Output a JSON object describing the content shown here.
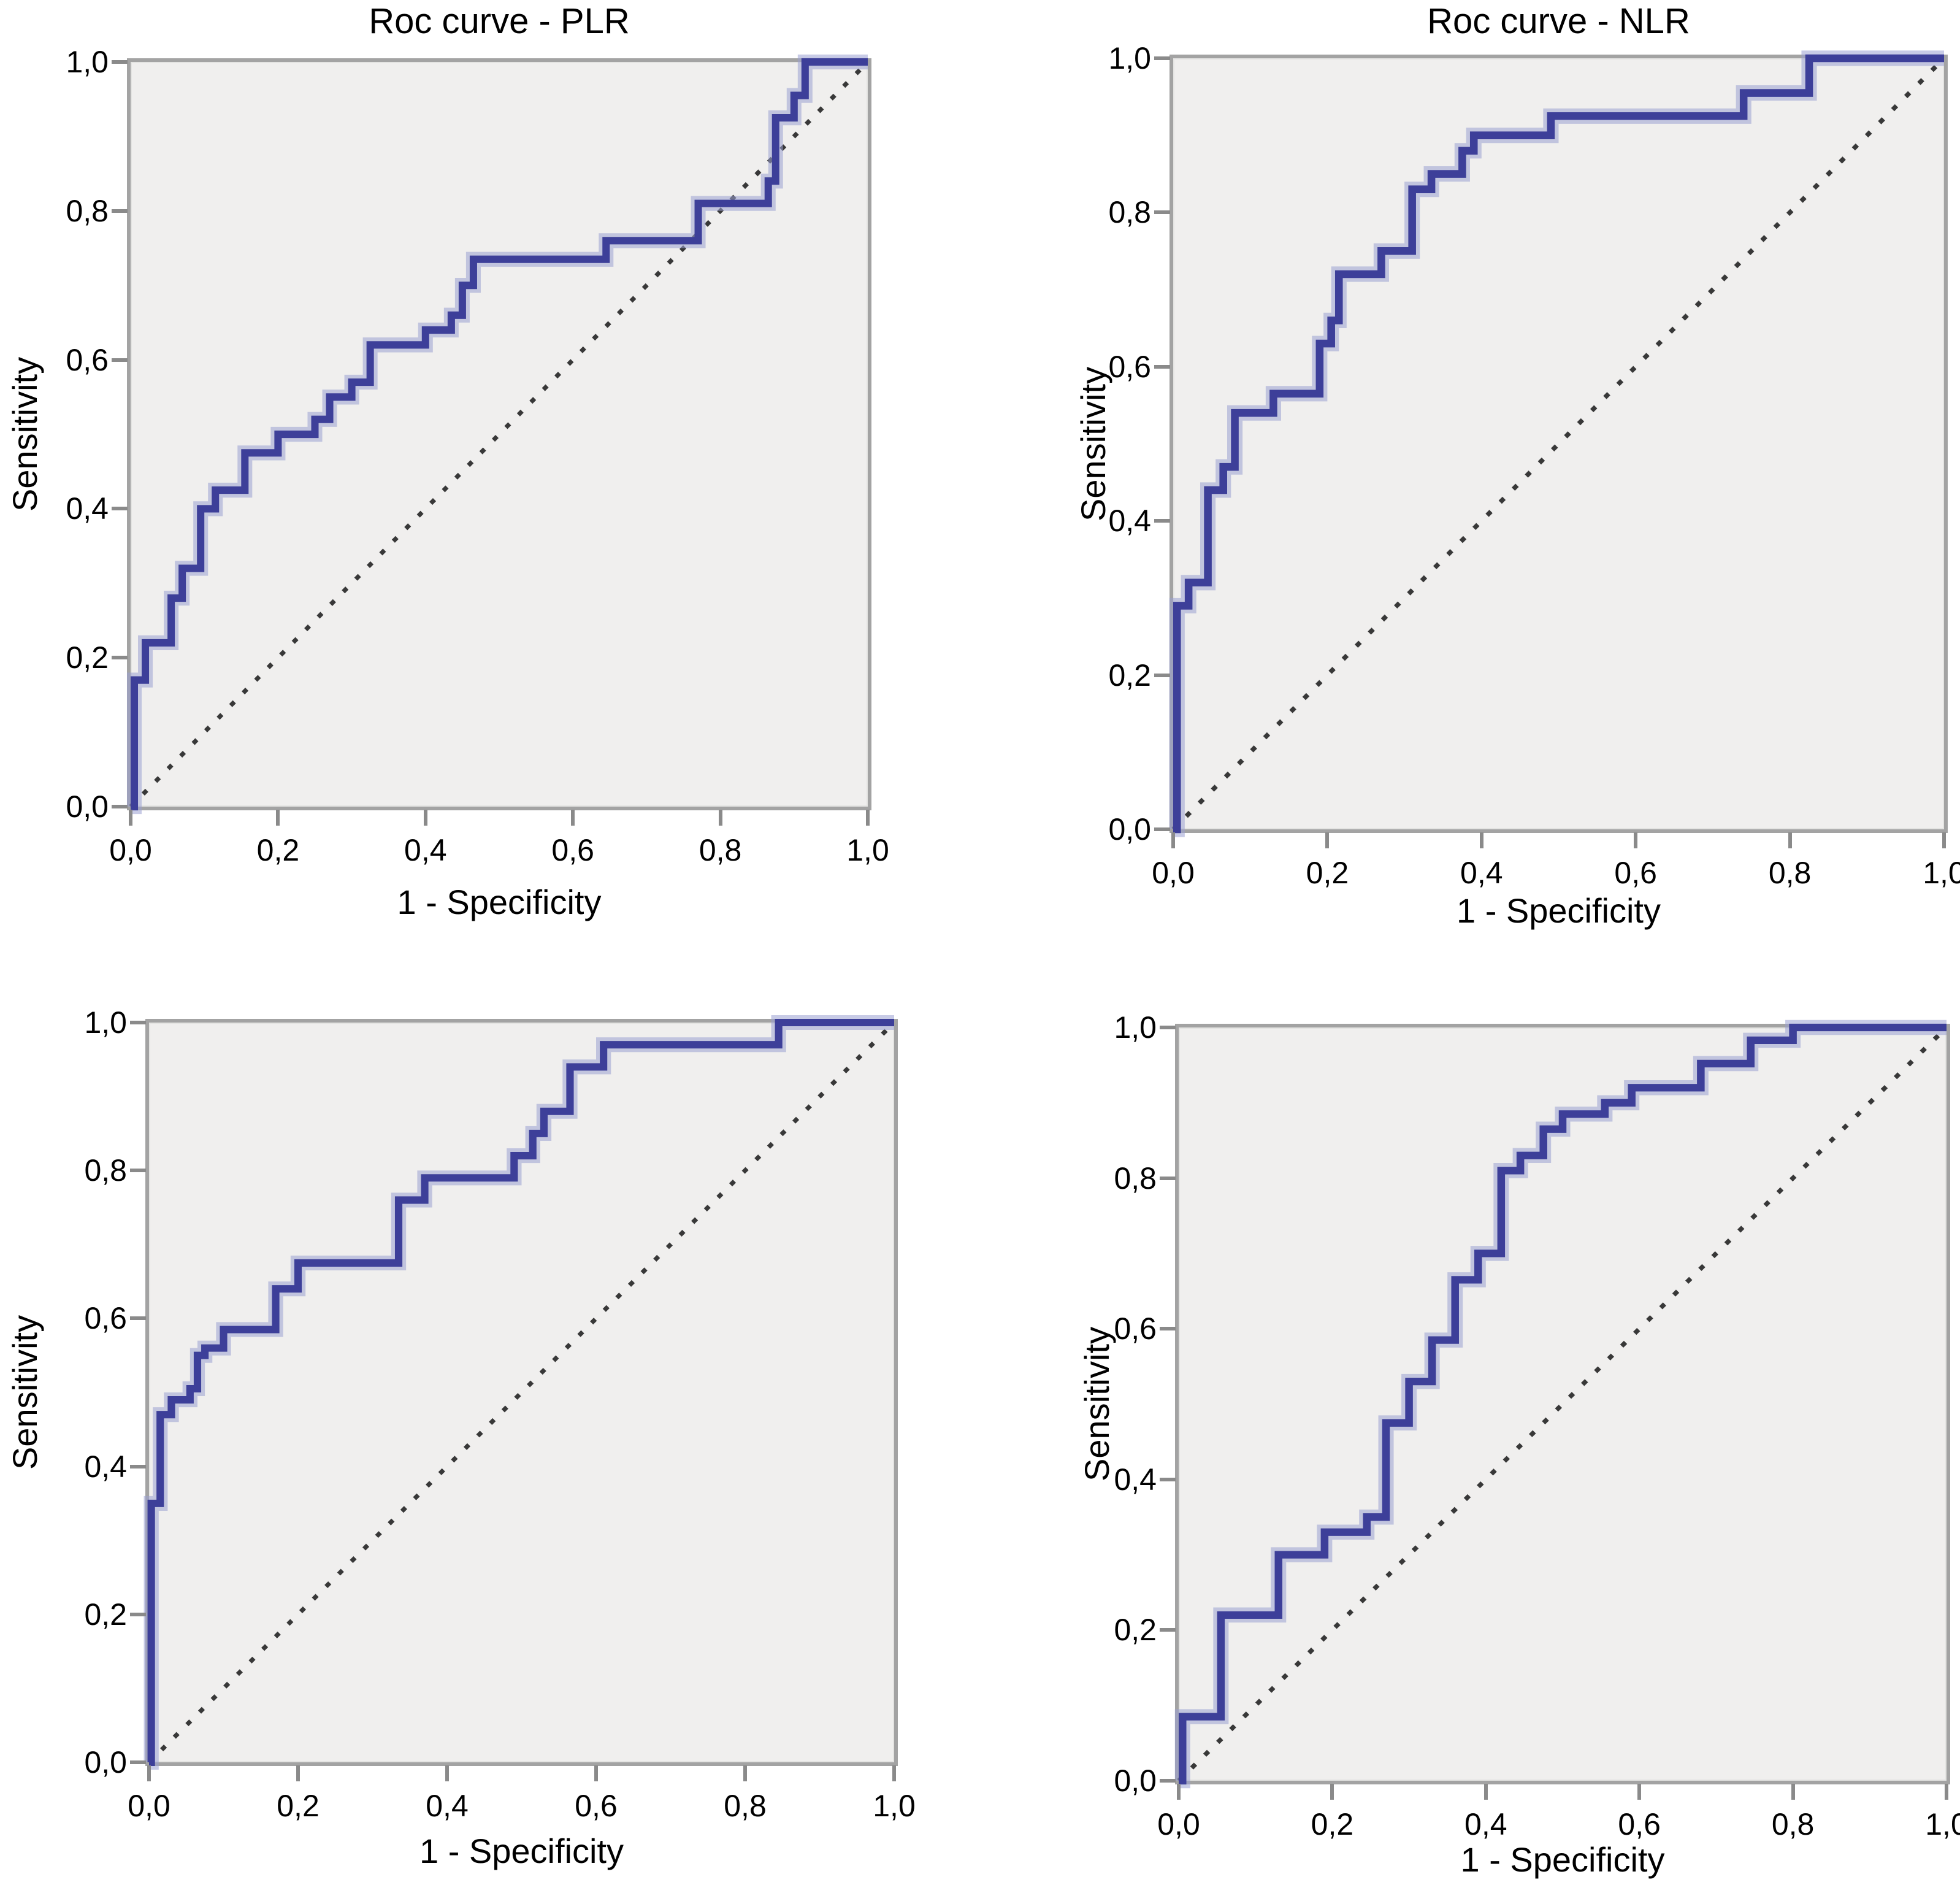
{
  "figure": {
    "description": "Four ROC curve panels arranged in a 2x2 grid",
    "rows": 2,
    "cols": 2
  },
  "style": {
    "page_background": "#ffffff",
    "curve_color": "#3d3f99",
    "curve_halo": "#9aa0d2",
    "diagonal_color": "#383838",
    "plot_background": "#f0efee",
    "plot_border_color": "#a3a3a3",
    "tick_mark_color": "#8a8a8a",
    "text_color": "#000000"
  },
  "axes": {
    "x_label": "1 - Specificity",
    "y_label": "Sensitivity",
    "x_tick_labels": [
      "0,0",
      "0,2",
      "0,4",
      "0,6",
      "0,8",
      "1,0"
    ],
    "y_tick_labels": [
      "0,0",
      "0,2",
      "0,4",
      "0,6",
      "0,8",
      "1,0"
    ],
    "tick_values": [
      0,
      0.2,
      0.4,
      0.6,
      0.8,
      1
    ]
  },
  "chart_data": [
    {
      "type": "line",
      "subtype": "roc-step",
      "title": "Roc curve - PLR",
      "xlabel": "1 - Specificity",
      "ylabel": "Sensitivity",
      "xlim": [
        0,
        1
      ],
      "ylim": [
        0,
        1
      ],
      "grid": false,
      "diagonal_reference": true,
      "points": [
        [
          0,
          0
        ],
        [
          0.005,
          0.17
        ],
        [
          0.02,
          0.22
        ],
        [
          0.055,
          0.28
        ],
        [
          0.07,
          0.32
        ],
        [
          0.095,
          0.4
        ],
        [
          0.115,
          0.425
        ],
        [
          0.155,
          0.475
        ],
        [
          0.2,
          0.5
        ],
        [
          0.25,
          0.52
        ],
        [
          0.27,
          0.55
        ],
        [
          0.3,
          0.57
        ],
        [
          0.325,
          0.62
        ],
        [
          0.4,
          0.64
        ],
        [
          0.435,
          0.66
        ],
        [
          0.45,
          0.7
        ],
        [
          0.465,
          0.735
        ],
        [
          0.645,
          0.76
        ],
        [
          0.77,
          0.81
        ],
        [
          0.865,
          0.84
        ],
        [
          0.875,
          0.925
        ],
        [
          0.9,
          0.955
        ],
        [
          0.915,
          1
        ],
        [
          1,
          1
        ]
      ]
    },
    {
      "type": "line",
      "subtype": "roc-step",
      "title": "Roc curve - NLR",
      "xlabel": "1 - Specificity",
      "ylabel": "Sensitivity",
      "xlim": [
        0,
        1
      ],
      "ylim": [
        0,
        1
      ],
      "grid": false,
      "diagonal_reference": true,
      "points": [
        [
          0,
          0
        ],
        [
          0.005,
          0.29
        ],
        [
          0.02,
          0.32
        ],
        [
          0.045,
          0.44
        ],
        [
          0.065,
          0.47
        ],
        [
          0.08,
          0.54
        ],
        [
          0.13,
          0.565
        ],
        [
          0.19,
          0.63
        ],
        [
          0.205,
          0.66
        ],
        [
          0.215,
          0.72
        ],
        [
          0.27,
          0.75
        ],
        [
          0.31,
          0.83
        ],
        [
          0.335,
          0.85
        ],
        [
          0.375,
          0.88
        ],
        [
          0.39,
          0.9
        ],
        [
          0.49,
          0.925
        ],
        [
          0.74,
          0.955
        ],
        [
          0.825,
          1
        ],
        [
          1,
          1
        ]
      ]
    },
    {
      "type": "line",
      "subtype": "roc-step",
      "title": "",
      "xlabel": "1 - Specificity",
      "ylabel": "Sensitivity",
      "xlim": [
        0,
        1
      ],
      "ylim": [
        0,
        1
      ],
      "grid": false,
      "diagonal_reference": true,
      "points": [
        [
          0,
          0
        ],
        [
          0.003,
          0.35
        ],
        [
          0.015,
          0.47
        ],
        [
          0.03,
          0.49
        ],
        [
          0.055,
          0.505
        ],
        [
          0.065,
          0.55
        ],
        [
          0.075,
          0.56
        ],
        [
          0.1,
          0.585
        ],
        [
          0.17,
          0.64
        ],
        [
          0.2,
          0.675
        ],
        [
          0.335,
          0.76
        ],
        [
          0.37,
          0.79
        ],
        [
          0.49,
          0.82
        ],
        [
          0.515,
          0.85
        ],
        [
          0.53,
          0.88
        ],
        [
          0.565,
          0.94
        ],
        [
          0.61,
          0.97
        ],
        [
          0.845,
          1
        ],
        [
          1,
          1
        ]
      ]
    },
    {
      "type": "line",
      "subtype": "roc-step",
      "title": "",
      "xlabel": "1 - Specificity",
      "ylabel": "Sensitivity",
      "xlim": [
        0,
        1
      ],
      "ylim": [
        0,
        1
      ],
      "grid": false,
      "diagonal_reference": true,
      "points": [
        [
          0,
          0
        ],
        [
          0.005,
          0.085
        ],
        [
          0.055,
          0.22
        ],
        [
          0.13,
          0.3
        ],
        [
          0.19,
          0.33
        ],
        [
          0.245,
          0.35
        ],
        [
          0.27,
          0.475
        ],
        [
          0.3,
          0.53
        ],
        [
          0.33,
          0.585
        ],
        [
          0.36,
          0.665
        ],
        [
          0.39,
          0.7
        ],
        [
          0.42,
          0.81
        ],
        [
          0.445,
          0.83
        ],
        [
          0.475,
          0.865
        ],
        [
          0.5,
          0.885
        ],
        [
          0.555,
          0.9
        ],
        [
          0.59,
          0.92
        ],
        [
          0.68,
          0.952
        ],
        [
          0.745,
          0.983
        ],
        [
          0.8,
          1
        ],
        [
          1,
          1
        ]
      ]
    }
  ]
}
